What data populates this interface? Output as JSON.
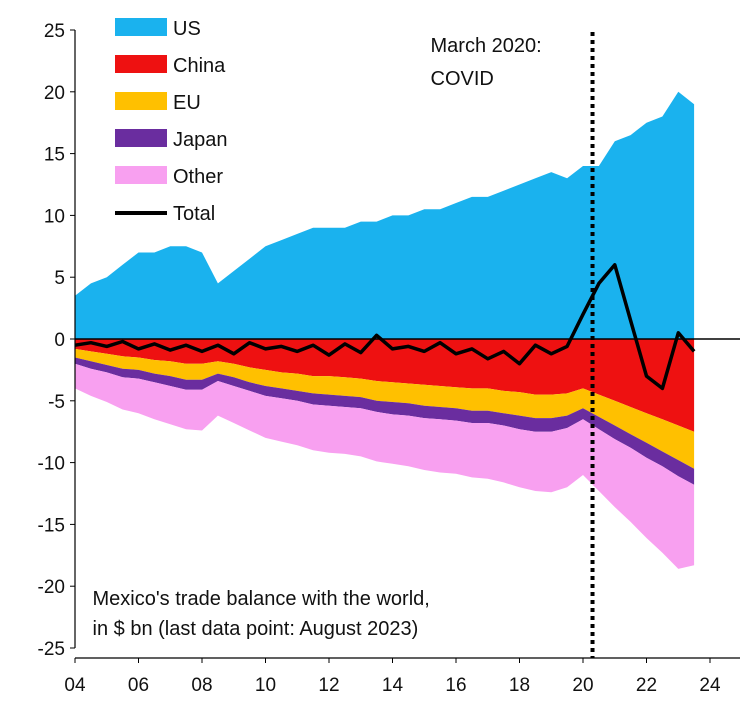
{
  "chart_data": {
    "type": "area",
    "title": "",
    "xlabel": "",
    "ylabel": "",
    "x_range": [
      2004,
      2024
    ],
    "ylim": [
      -25,
      25
    ],
    "x_ticks": [
      "04",
      "06",
      "08",
      "10",
      "12",
      "14",
      "16",
      "18",
      "20",
      "22",
      "24"
    ],
    "y_ticks": [
      "25",
      "20",
      "15",
      "10",
      "5",
      "0",
      "-5",
      "-10",
      "-15",
      "-20",
      "-25"
    ],
    "grid": false,
    "legend_position": "top-left",
    "colors": {
      "US": "#1AB2EE",
      "China": "#EE1111",
      "EU": "#FFC000",
      "Japan": "#6A2D9F",
      "Other": "#F8A0F0",
      "Total": "#000000",
      "vline": "#000000"
    },
    "legend": [
      {
        "name": "US",
        "kind": "area"
      },
      {
        "name": "China",
        "kind": "area"
      },
      {
        "name": "EU",
        "kind": "area"
      },
      {
        "name": "Japan",
        "kind": "area"
      },
      {
        "name": "Other",
        "kind": "area"
      },
      {
        "name": "Total",
        "kind": "line"
      }
    ],
    "x": [
      2004.0,
      2004.5,
      2005.0,
      2005.5,
      2006.0,
      2006.5,
      2007.0,
      2007.5,
      2008.0,
      2008.5,
      2009.0,
      2009.5,
      2010.0,
      2010.5,
      2011.0,
      2011.5,
      2012.0,
      2012.5,
      2013.0,
      2013.5,
      2014.0,
      2014.5,
      2015.0,
      2015.5,
      2016.0,
      2016.5,
      2017.0,
      2017.5,
      2018.0,
      2018.5,
      2019.0,
      2019.5,
      2020.0,
      2020.5,
      2021.0,
      2021.5,
      2022.0,
      2022.5,
      2023.0,
      2023.5
    ],
    "series": [
      {
        "name": "US",
        "values": [
          3.5,
          4.5,
          5.0,
          6.0,
          7.0,
          7.0,
          7.5,
          7.5,
          7.0,
          4.5,
          5.5,
          6.5,
          7.5,
          8.0,
          8.5,
          9.0,
          9.0,
          9.0,
          9.5,
          9.5,
          10.0,
          10.0,
          10.5,
          10.5,
          11.0,
          11.5,
          11.5,
          12.0,
          12.5,
          13.0,
          13.5,
          13.0,
          14.0,
          14.0,
          16.0,
          16.5,
          17.5,
          18.0,
          20.0,
          19.0
        ]
      },
      {
        "name": "China",
        "values": [
          -0.8,
          -1.0,
          -1.2,
          -1.4,
          -1.5,
          -1.7,
          -1.8,
          -2.0,
          -2.0,
          -1.8,
          -2.0,
          -2.3,
          -2.5,
          -2.7,
          -2.8,
          -3.0,
          -3.0,
          -3.1,
          -3.2,
          -3.4,
          -3.5,
          -3.6,
          -3.7,
          -3.8,
          -3.9,
          -4.0,
          -4.0,
          -4.2,
          -4.3,
          -4.5,
          -4.5,
          -4.4,
          -4.0,
          -4.5,
          -5.0,
          -5.5,
          -6.0,
          -6.5,
          -7.0,
          -7.5
        ]
      },
      {
        "name": "EU",
        "values": [
          -0.7,
          -0.8,
          -0.9,
          -1.0,
          -1.0,
          -1.1,
          -1.2,
          -1.3,
          -1.3,
          -1.0,
          -1.1,
          -1.2,
          -1.3,
          -1.3,
          -1.4,
          -1.4,
          -1.5,
          -1.5,
          -1.5,
          -1.6,
          -1.6,
          -1.6,
          -1.7,
          -1.7,
          -1.7,
          -1.8,
          -1.8,
          -1.8,
          -1.9,
          -1.9,
          -1.9,
          -1.8,
          -1.6,
          -1.8,
          -2.0,
          -2.2,
          -2.4,
          -2.6,
          -2.8,
          -3.0
        ]
      },
      {
        "name": "Japan",
        "values": [
          -0.5,
          -0.6,
          -0.6,
          -0.7,
          -0.7,
          -0.7,
          -0.8,
          -0.8,
          -0.8,
          -0.6,
          -0.7,
          -0.7,
          -0.8,
          -0.8,
          -0.8,
          -0.9,
          -0.9,
          -0.9,
          -0.9,
          -0.9,
          -1.0,
          -1.0,
          -1.0,
          -1.0,
          -1.0,
          -1.0,
          -1.0,
          -1.0,
          -1.1,
          -1.1,
          -1.1,
          -1.0,
          -0.9,
          -1.0,
          -1.1,
          -1.1,
          -1.2,
          -1.2,
          -1.3,
          -1.3
        ]
      },
      {
        "name": "Other",
        "values": [
          -2.0,
          -2.2,
          -2.4,
          -2.6,
          -2.8,
          -3.0,
          -3.1,
          -3.2,
          -3.3,
          -2.8,
          -3.0,
          -3.2,
          -3.4,
          -3.5,
          -3.6,
          -3.7,
          -3.8,
          -3.8,
          -3.9,
          -4.0,
          -4.0,
          -4.1,
          -4.2,
          -4.3,
          -4.3,
          -4.4,
          -4.5,
          -4.6,
          -4.7,
          -4.8,
          -4.9,
          -4.8,
          -4.5,
          -5.0,
          -5.5,
          -6.0,
          -6.5,
          -7.0,
          -7.5,
          -6.5
        ]
      },
      {
        "name": "Total",
        "values": [
          -0.5,
          -0.3,
          -0.6,
          -0.2,
          -0.8,
          -0.4,
          -0.9,
          -0.5,
          -1.0,
          -0.5,
          -1.2,
          -0.3,
          -0.8,
          -0.6,
          -1.0,
          -0.5,
          -1.3,
          -0.4,
          -1.1,
          0.3,
          -0.8,
          -0.6,
          -1.0,
          -0.3,
          -1.2,
          -0.8,
          -1.6,
          -1.0,
          -2.0,
          -0.5,
          -1.2,
          -0.6,
          2.0,
          4.5,
          6.0,
          1.5,
          -3.0,
          -4.0,
          0.5,
          -1.0
        ]
      }
    ],
    "vline": {
      "x": 2020.3,
      "style": "dotted"
    },
    "annotations": [
      {
        "text_lines": [
          "March 2020:",
          "COVID"
        ],
        "x": 2020.3,
        "y": 24.5
      },
      {
        "text_lines": [
          "Mexico's trade balance with the world,",
          "in $ bn (last data point: August 2023)"
        ],
        "x": 2004.3,
        "y": -21.0
      }
    ]
  }
}
